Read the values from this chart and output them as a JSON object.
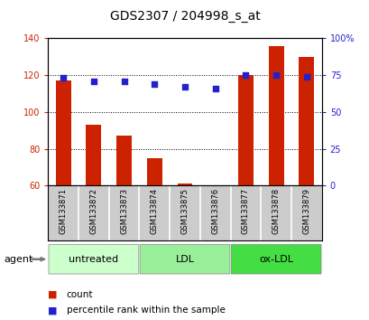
{
  "title": "GDS2307 / 204998_s_at",
  "categories": [
    "GSM133871",
    "GSM133872",
    "GSM133873",
    "GSM133874",
    "GSM133875",
    "GSM133876",
    "GSM133877",
    "GSM133878",
    "GSM133879"
  ],
  "bar_values": [
    117,
    93,
    87,
    75,
    61,
    60,
    120,
    136,
    130
  ],
  "percentile_values": [
    73,
    71,
    71,
    69,
    67,
    66,
    75,
    75,
    74
  ],
  "bar_color": "#cc2200",
  "dot_color": "#2222cc",
  "left_ylim": [
    60,
    140
  ],
  "right_ylim": [
    0,
    100
  ],
  "left_yticks": [
    60,
    80,
    100,
    120,
    140
  ],
  "right_yticks": [
    0,
    25,
    50,
    75,
    100
  ],
  "right_yticklabels": [
    "0",
    "25",
    "50",
    "75",
    "100%"
  ],
  "groups": [
    {
      "label": "untreated",
      "start": 0,
      "end": 3,
      "color": "#ccffcc"
    },
    {
      "label": "LDL",
      "start": 3,
      "end": 6,
      "color": "#99ee99"
    },
    {
      "label": "ox-LDL",
      "start": 6,
      "end": 9,
      "color": "#44dd44"
    }
  ],
  "agent_label": "agent",
  "legend_count_label": "count",
  "legend_pct_label": "percentile rank within the sample",
  "background_color": "#ffffff",
  "plot_bg_color": "#ffffff",
  "ticklabel_bg": "#cccccc",
  "bar_width": 0.5,
  "figsize": [
    4.1,
    3.54
  ],
  "dpi": 100
}
